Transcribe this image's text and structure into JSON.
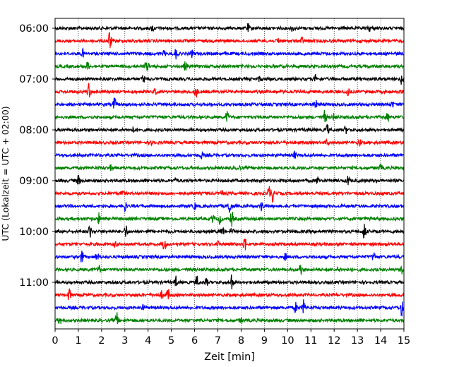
{
  "chart_data": {
    "type": "line",
    "title": "",
    "xlabel": "Zeit  [min]",
    "ylabel": "UTC (Lokalzeit = UTC + 02:00)",
    "xlim": [
      0,
      15
    ],
    "x_ticks": [
      0,
      1,
      2,
      3,
      4,
      5,
      6,
      7,
      8,
      9,
      10,
      11,
      12,
      13,
      14,
      15
    ],
    "x_tick_labels": [
      "0",
      "1",
      "2",
      "3",
      "4",
      "5",
      "6",
      "7",
      "8",
      "9",
      "10",
      "11",
      "12",
      "13",
      "14",
      "15"
    ],
    "y_tick_labels": [
      {
        "label": "06:00",
        "trace": 0
      },
      {
        "label": "07:00",
        "trace": 4
      },
      {
        "label": "08:00",
        "trace": 8
      },
      {
        "label": "09:00",
        "trace": 12
      },
      {
        "label": "10:00",
        "trace": 16
      },
      {
        "label": "11:00",
        "trace": 20
      }
    ],
    "grid": {
      "vertical": true,
      "style": "dotted"
    },
    "trace_colors": [
      "#000000",
      "#ff0000",
      "#0000ff",
      "#008000"
    ],
    "traces": [
      {
        "start": "06:00",
        "events": [
          [
            4.2,
            0.5
          ],
          [
            8.3,
            0.6
          ],
          [
            10.2,
            0.4
          ],
          [
            13.5,
            0.5
          ]
        ]
      },
      {
        "start": "06:15",
        "events": [
          [
            2.35,
            1.6
          ],
          [
            10.6,
            0.5
          ],
          [
            9.6,
            0.4
          ]
        ]
      },
      {
        "start": "06:30",
        "events": [
          [
            1.2,
            0.6
          ],
          [
            5.2,
            0.8
          ],
          [
            5.9,
            0.5
          ],
          [
            4.7,
            0.4
          ]
        ]
      },
      {
        "start": "06:45",
        "events": [
          [
            1.4,
            0.7
          ],
          [
            5.6,
            0.7
          ],
          [
            3.9,
            0.4
          ],
          [
            4.0,
            0.5
          ]
        ]
      },
      {
        "start": "07:00",
        "events": [
          [
            3.8,
            0.6
          ],
          [
            11.2,
            0.5
          ],
          [
            14.9,
            0.8
          ],
          [
            8.8,
            0.4
          ]
        ]
      },
      {
        "start": "07:15",
        "events": [
          [
            1.45,
            1.3
          ],
          [
            6.05,
            1.0
          ],
          [
            12.6,
            0.8
          ],
          [
            4.3,
            0.4
          ]
        ]
      },
      {
        "start": "07:30",
        "events": [
          [
            2.55,
            1.2
          ],
          [
            11.2,
            0.6
          ],
          [
            14.5,
            0.5
          ]
        ]
      },
      {
        "start": "07:45",
        "events": [
          [
            7.4,
            0.9
          ],
          [
            11.6,
            1.0
          ],
          [
            14.3,
            0.7
          ],
          [
            12.0,
            0.5
          ]
        ]
      },
      {
        "start": "08:00",
        "events": [
          [
            11.7,
            0.9
          ],
          [
            12.5,
            0.5
          ],
          [
            3.4,
            0.4
          ]
        ]
      },
      {
        "start": "08:15",
        "events": [
          [
            4.2,
            0.6
          ],
          [
            11.7,
            0.4
          ],
          [
            13.1,
            0.5
          ]
        ]
      },
      {
        "start": "08:30",
        "events": [
          [
            6.3,
            0.5
          ],
          [
            10.3,
            0.5
          ]
        ]
      },
      {
        "start": "08:45",
        "events": [
          [
            2.4,
            0.4
          ],
          [
            7.9,
            0.5
          ],
          [
            14.0,
            0.5
          ]
        ]
      },
      {
        "start": "09:00",
        "events": [
          [
            1.0,
            0.8
          ],
          [
            11.3,
            0.6
          ],
          [
            12.6,
            0.7
          ],
          [
            5.2,
            0.4
          ]
        ]
      },
      {
        "start": "09:15",
        "events": [
          [
            9.2,
            1.1
          ],
          [
            9.35,
            1.2
          ],
          [
            2.9,
            0.5
          ],
          [
            7.2,
            0.4
          ]
        ]
      },
      {
        "start": "09:30",
        "events": [
          [
            3.0,
            0.8
          ],
          [
            7.5,
            1.4
          ],
          [
            8.9,
            0.9
          ],
          [
            6.0,
            0.5
          ]
        ]
      },
      {
        "start": "09:45",
        "events": [
          [
            1.9,
            0.9
          ],
          [
            7.6,
            1.2
          ],
          [
            7.1,
            0.8
          ],
          [
            6.8,
            0.6
          ]
        ]
      },
      {
        "start": "10:00",
        "events": [
          [
            1.5,
            1.1
          ],
          [
            3.05,
            1.0
          ],
          [
            7.2,
            0.8
          ],
          [
            13.3,
            1.4
          ],
          [
            7.6,
            0.5
          ]
        ]
      },
      {
        "start": "10:15",
        "events": [
          [
            4.7,
            1.2
          ],
          [
            8.15,
            1.3
          ],
          [
            7.0,
            0.8
          ],
          [
            2.6,
            0.4
          ]
        ]
      },
      {
        "start": "10:30",
        "events": [
          [
            1.15,
            1.0
          ],
          [
            1.8,
            0.6
          ],
          [
            13.7,
            0.8
          ],
          [
            9.9,
            0.5
          ]
        ]
      },
      {
        "start": "10:45",
        "events": [
          [
            10.55,
            1.0
          ],
          [
            14.9,
            0.9
          ],
          [
            1.9,
            0.6
          ],
          [
            12.2,
            0.5
          ]
        ]
      },
      {
        "start": "11:00",
        "events": [
          [
            5.2,
            0.9
          ],
          [
            6.1,
            1.0
          ],
          [
            7.6,
            1.4
          ],
          [
            6.5,
            0.6
          ]
        ]
      },
      {
        "start": "11:15",
        "events": [
          [
            0.6,
            1.2
          ],
          [
            4.85,
            1.0
          ],
          [
            4.6,
            0.6
          ]
        ]
      },
      {
        "start": "11:30",
        "events": [
          [
            10.7,
            1.2
          ],
          [
            10.35,
            0.8
          ],
          [
            14.9,
            1.3
          ],
          [
            3.8,
            0.4
          ]
        ]
      },
      {
        "start": "11:45",
        "events": [
          [
            0.2,
            0.7
          ],
          [
            2.65,
            1.2
          ],
          [
            8.0,
            0.4
          ]
        ]
      }
    ]
  }
}
